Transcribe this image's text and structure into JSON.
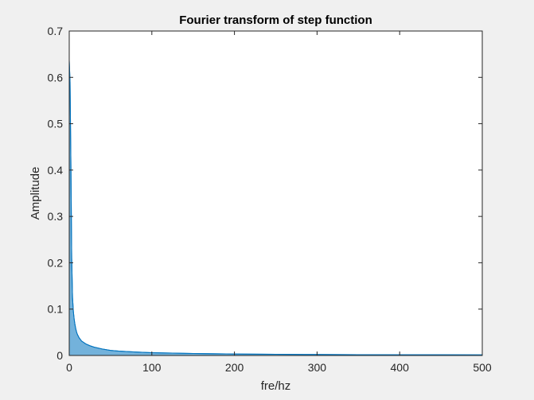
{
  "window": {
    "background": "#f0f0f0"
  },
  "chart_data": {
    "type": "line",
    "title": "Fourier transform of step function",
    "xlabel": "fre/hz",
    "ylabel": "Amplitude",
    "xlim": [
      0,
      500
    ],
    "ylim": [
      0,
      0.7
    ],
    "xticks": [
      0,
      100,
      200,
      300,
      400,
      500
    ],
    "yticks": [
      0,
      0.1,
      0.2,
      0.3,
      0.4,
      0.5,
      0.6,
      0.7
    ],
    "grid": false,
    "legend": "none",
    "line_color": "#0072bd",
    "series": [
      {
        "x": [
          0,
          1,
          2,
          3,
          4,
          5,
          6,
          7,
          8,
          9,
          10,
          12,
          15,
          20,
          25,
          30,
          40,
          50,
          60,
          80,
          100,
          150,
          200,
          250,
          300,
          350,
          400,
          450,
          500
        ],
        "upper": [
          0.637,
          0.59,
          0.42,
          0.21,
          0.125,
          0.095,
          0.078,
          0.066,
          0.057,
          0.05,
          0.045,
          0.038,
          0.031,
          0.025,
          0.021,
          0.018,
          0.014,
          0.011,
          0.0095,
          0.0075,
          0.006,
          0.0042,
          0.0032,
          0.0025,
          0.0021,
          0.0018,
          0.0016,
          0.0014,
          0.0013
        ],
        "lower": [
          0.0,
          0.0,
          0.0,
          0.0,
          0.0,
          0.0,
          0.0,
          0.0,
          0.0,
          0.0,
          0.0,
          0.0,
          0.0,
          0.0,
          0.0,
          0.0,
          0.0,
          0.0,
          0.0,
          0.0,
          0.0,
          0.0,
          0.0,
          0.0,
          0.0,
          0.0,
          0.0,
          0.0,
          0.0
        ]
      }
    ]
  }
}
